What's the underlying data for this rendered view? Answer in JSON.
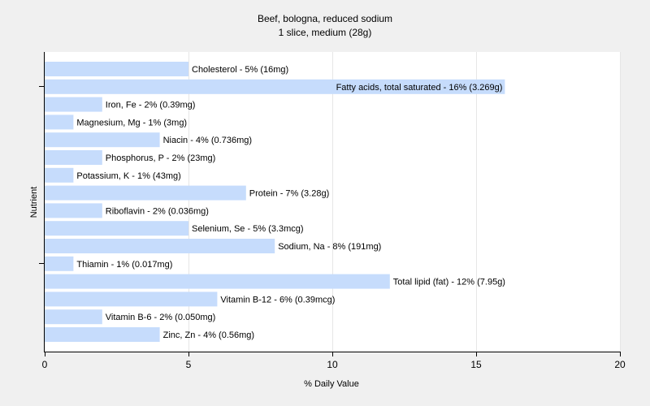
{
  "chart_data": {
    "type": "bar",
    "orientation": "horizontal",
    "title": "Beef, bologna, reduced sodium",
    "subtitle": "1 slice, medium (28g)",
    "xlabel": "% Daily Value",
    "ylabel": "Nutrient",
    "xlim": [
      0,
      20
    ],
    "xticks": [
      0,
      5,
      10,
      15,
      20
    ],
    "grid": "vertical",
    "bar_color": "#c6dcfc",
    "bars": [
      {
        "label": "Cholesterol - 5% (16mg)",
        "value": 5
      },
      {
        "label": "Fatty acids, total saturated - 16% (3.269g)",
        "value": 16
      },
      {
        "label": "Iron, Fe - 2% (0.39mg)",
        "value": 2
      },
      {
        "label": "Magnesium, Mg - 1% (3mg)",
        "value": 1
      },
      {
        "label": "Niacin - 4% (0.736mg)",
        "value": 4
      },
      {
        "label": "Phosphorus, P - 2% (23mg)",
        "value": 2
      },
      {
        "label": "Potassium, K - 1% (43mg)",
        "value": 1
      },
      {
        "label": "Protein - 7% (3.28g)",
        "value": 7
      },
      {
        "label": "Riboflavin - 2% (0.036mg)",
        "value": 2
      },
      {
        "label": "Selenium, Se - 5% (3.3mcg)",
        "value": 5
      },
      {
        "label": "Sodium, Na - 8% (191mg)",
        "value": 8
      },
      {
        "label": "Thiamin - 1% (0.017mg)",
        "value": 1
      },
      {
        "label": "Total lipid (fat) - 12% (7.95g)",
        "value": 12
      },
      {
        "label": "Vitamin B-12 - 6% (0.39mcg)",
        "value": 6
      },
      {
        "label": "Vitamin B-6 - 2% (0.050mg)",
        "value": 2
      },
      {
        "label": "Zinc, Zn - 4% (0.56mg)",
        "value": 4
      }
    ]
  }
}
